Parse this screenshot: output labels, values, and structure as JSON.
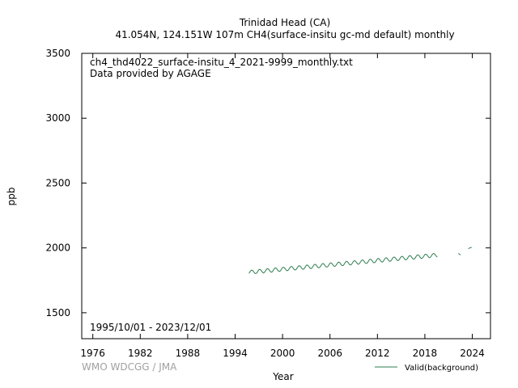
{
  "title_lines": [
    "Trinidad Head (CA)",
    "41.054N, 124.151W 107m    CH4(surface-insitu gc-md default) monthly"
  ],
  "file_label": "ch4_thd4022_surface-insitu_4_2021-9999_monthly.txt",
  "provider": "Data provided by AGAGE",
  "date_range": "1995/10/01 - 2023/12/01",
  "watermark": "WMO WDCGG / JMA",
  "colors": {
    "series": "#2e7d4f",
    "watermark": "#a0a0a0"
  },
  "chart_data": {
    "type": "line",
    "xlabel": "Year",
    "ylabel": "ppb",
    "xlim": [
      1974.6,
      2026.3
    ],
    "ylim": [
      1300,
      3500
    ],
    "xticks": [
      1976,
      1982,
      1988,
      1994,
      2000,
      2006,
      2012,
      2018,
      2024
    ],
    "yticks": [
      1500,
      2000,
      2500,
      3000,
      3500
    ],
    "grid": false,
    "legend_position": "bottom-right",
    "series": [
      {
        "name": "Valid(background)",
        "segments": [
          {
            "start_year": 1995.75,
            "end_year": 2019.58,
            "start_value": 1812,
            "end_value": 1945,
            "seasonal_amplitude": 15
          },
          {
            "start_year": 2022.25,
            "end_year": 2022.5,
            "start_value": 1958,
            "end_value": 1945,
            "seasonal_amplitude": 0
          },
          {
            "start_year": 2023.5,
            "end_year": 2023.92,
            "start_value": 1995,
            "end_value": 2005,
            "seasonal_amplitude": 0
          }
        ]
      }
    ]
  }
}
